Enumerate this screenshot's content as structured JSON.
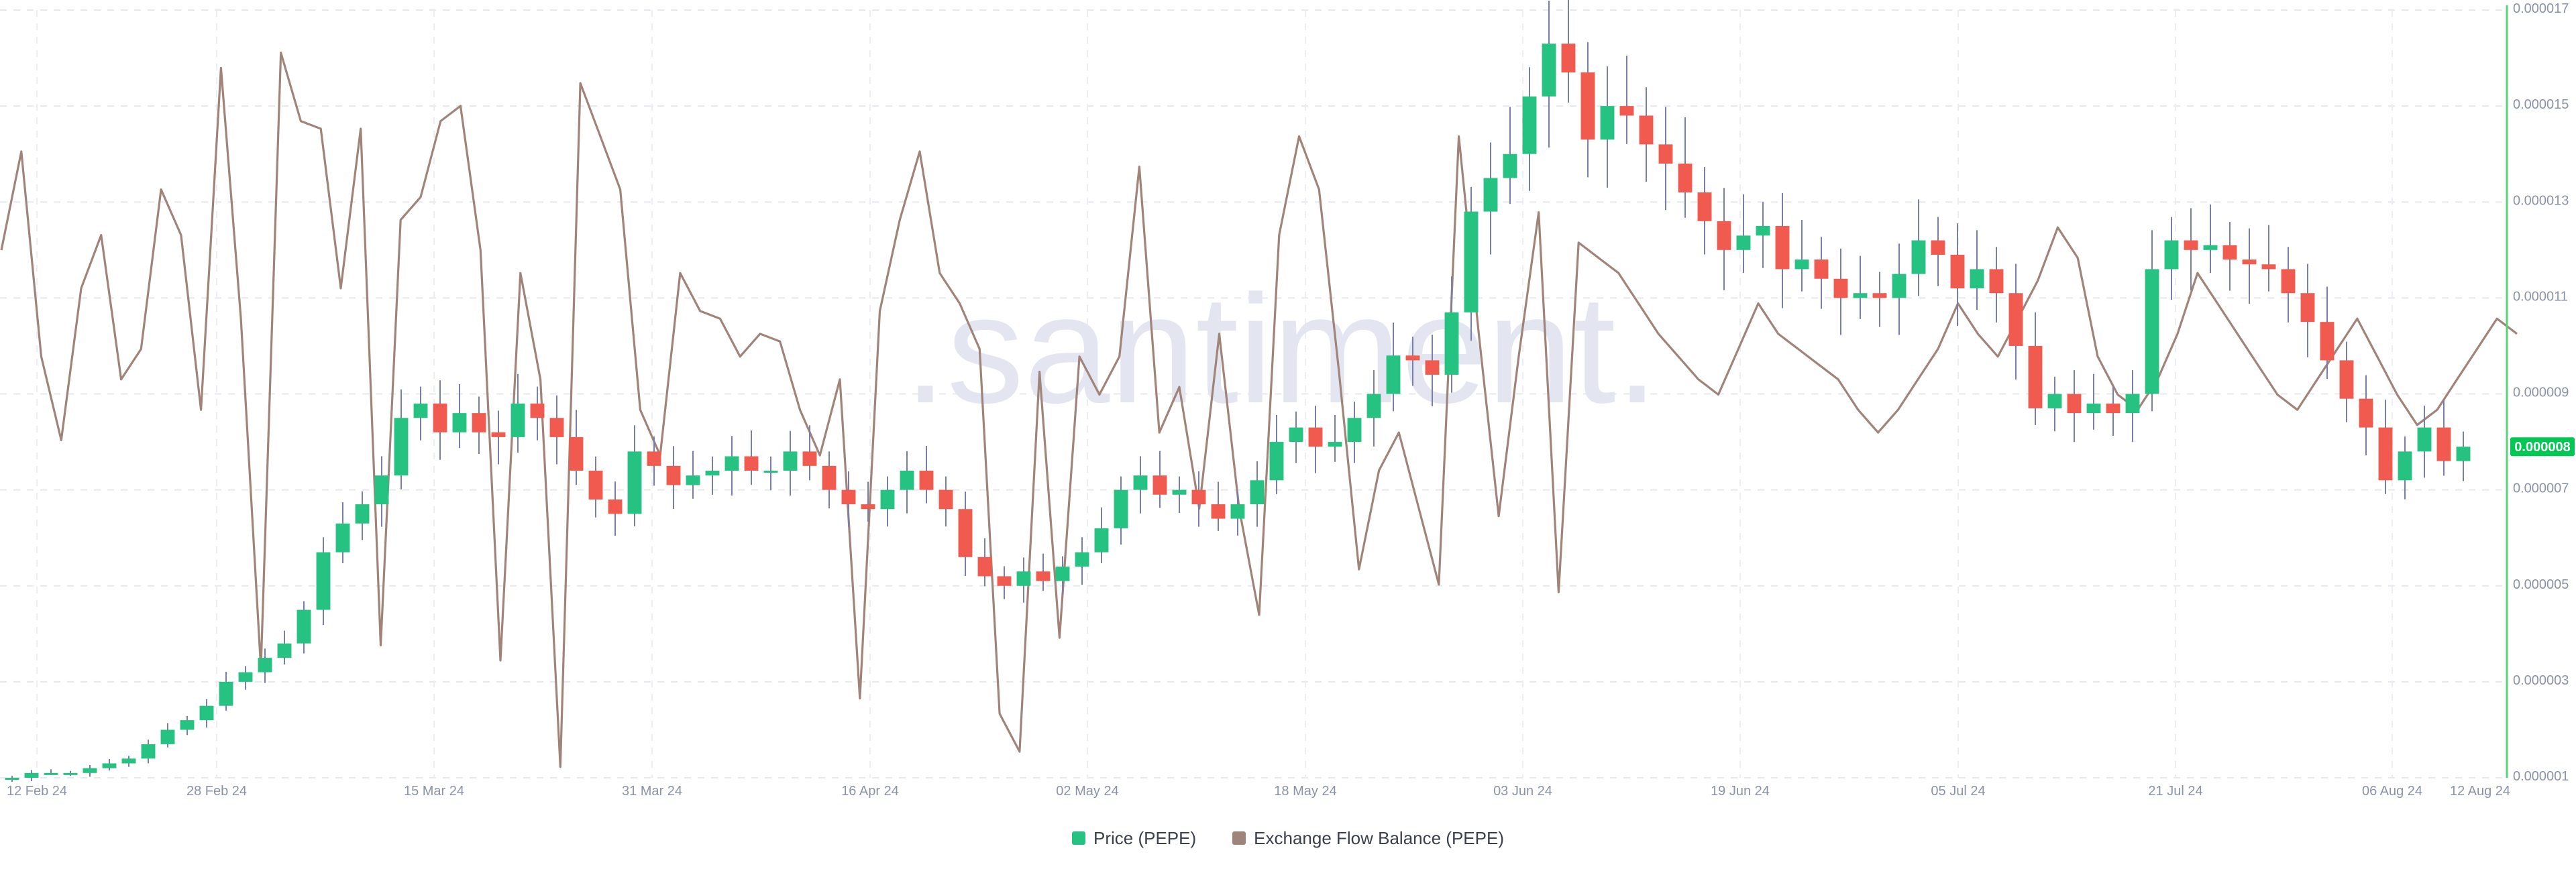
{
  "watermark": ".santiment.",
  "chart_data": {
    "type": "candlestick+line",
    "x_axis": {
      "ticks": [
        "12 Feb 24",
        "28 Feb 24",
        "15 Mar 24",
        "31 Mar 24",
        "16 Apr 24",
        "02 May 24",
        "18 May 24",
        "03 Jun 24",
        "19 Jun 24",
        "05 Jul 24",
        "21 Jul 24",
        "06 Aug 24",
        "12 Aug 24"
      ],
      "range": [
        "12 Feb 24",
        "12 Aug 24"
      ]
    },
    "y_axis_right": {
      "ticks": [
        "0.000001",
        "0.000003",
        "0.000005",
        "0.000007",
        "0.000009",
        "0.000011",
        "0.000013",
        "0.000015",
        "0.000017"
      ],
      "range": [
        1e-06,
        1.7e-05
      ]
    },
    "current_price_label": "0.000008",
    "grid": true,
    "legend_position": "bottom-center",
    "series": [
      {
        "name": "Price (PEPE)",
        "type": "candlestick",
        "colors": {
          "up": "#26c281",
          "down": "#f05a4f",
          "accent": "#00c853"
        },
        "close_values": [
          1e-06,
          1.1e-06,
          1.1e-06,
          1.1e-06,
          1.2e-06,
          1.3e-06,
          1.4e-06,
          1.7e-06,
          2e-06,
          2.2e-06,
          2.5e-06,
          3e-06,
          3.2e-06,
          3.5e-06,
          3.8e-06,
          4.5e-06,
          5.7e-06,
          6.3e-06,
          6.7e-06,
          7.3e-06,
          8.5e-06,
          8.8e-06,
          8.2e-06,
          8.6e-06,
          8.2e-06,
          8.1e-06,
          8.8e-06,
          8.5e-06,
          8.1e-06,
          7.4e-06,
          6.8e-06,
          6.5e-06,
          7.8e-06,
          7.5e-06,
          7.1e-06,
          7.3e-06,
          7.4e-06,
          7.7e-06,
          7.4e-06,
          7.4e-06,
          7.8e-06,
          7.5e-06,
          7e-06,
          6.7e-06,
          6.6e-06,
          7e-06,
          7.4e-06,
          7e-06,
          6.6e-06,
          5.6e-06,
          5.2e-06,
          5e-06,
          5.3e-06,
          5.1e-06,
          5.4e-06,
          5.7e-06,
          6.2e-06,
          7e-06,
          7.3e-06,
          6.9e-06,
          7e-06,
          6.7e-06,
          6.4e-06,
          6.7e-06,
          7.2e-06,
          8e-06,
          8.3e-06,
          7.9e-06,
          8e-06,
          8.5e-06,
          9e-06,
          9.8e-06,
          9.7e-06,
          9.4e-06,
          1.07e-05,
          1.28e-05,
          1.35e-05,
          1.4e-05,
          1.52e-05,
          1.63e-05,
          1.57e-05,
          1.43e-05,
          1.5e-05,
          1.48e-05,
          1.42e-05,
          1.38e-05,
          1.32e-05,
          1.26e-05,
          1.2e-05,
          1.23e-05,
          1.25e-05,
          1.16e-05,
          1.18e-05,
          1.14e-05,
          1.1e-05,
          1.11e-05,
          1.1e-05,
          1.15e-05,
          1.22e-05,
          1.19e-05,
          1.12e-05,
          1.16e-05,
          1.11e-05,
          1e-05,
          8.7e-06,
          9e-06,
          8.6e-06,
          8.8e-06,
          8.6e-06,
          9e-06,
          1.16e-05,
          1.22e-05,
          1.2e-05,
          1.21e-05,
          1.18e-05,
          1.17e-05,
          1.16e-05,
          1.11e-05,
          1.05e-05,
          9.7e-06,
          8.9e-06,
          8.3e-06,
          7.2e-06,
          7.8e-06,
          8.3e-06,
          7.6e-06,
          7.9e-06
        ],
        "approx_range": [
          1e-06,
          1.67e-05
        ]
      },
      {
        "name": "Exchange Flow Balance (PEPE)",
        "type": "line",
        "color": "#a0847a",
        "values_relative": [
          0.69,
          0.82,
          0.55,
          0.44,
          0.64,
          0.71,
          0.52,
          0.56,
          0.77,
          0.71,
          0.48,
          0.93,
          0.6,
          0.14,
          0.95,
          0.86,
          0.85,
          0.64,
          0.85,
          0.17,
          0.73,
          0.76,
          0.86,
          0.88,
          0.69,
          0.15,
          0.66,
          0.52,
          0.01,
          0.91,
          0.84,
          0.77,
          0.48,
          0.42,
          0.66,
          0.61,
          0.6,
          0.55,
          0.58,
          0.57,
          0.48,
          0.42,
          0.52,
          0.1,
          0.61,
          0.73,
          0.82,
          0.66,
          0.62,
          0.56,
          0.08,
          0.03,
          0.53,
          0.18,
          0.55,
          0.5,
          0.55,
          0.8,
          0.45,
          0.51,
          0.35,
          0.58,
          0.35,
          0.21,
          0.71,
          0.84,
          0.77,
          0.53,
          0.27,
          0.4,
          0.45,
          0.35,
          0.25,
          0.84,
          0.58,
          0.34,
          0.55,
          0.74,
          0.24,
          0.7,
          0.68,
          0.66,
          0.62,
          0.58,
          0.55,
          0.52,
          0.5,
          0.56,
          0.62,
          0.58,
          0.56,
          0.54,
          0.52,
          0.48,
          0.45,
          0.48,
          0.52,
          0.56,
          0.62,
          0.58,
          0.55,
          0.6,
          0.65,
          0.72,
          0.68,
          0.55,
          0.5,
          0.48,
          0.52,
          0.58,
          0.66,
          0.62,
          0.58,
          0.54,
          0.5,
          0.48,
          0.52,
          0.56,
          0.6,
          0.55,
          0.5,
          0.46,
          0.48,
          0.52,
          0.56,
          0.6,
          0.58
        ]
      }
    ],
    "legend": [
      {
        "label": "Price (PEPE)",
        "color": "#26c281"
      },
      {
        "label": "Exchange Flow Balance (PEPE)",
        "color": "#a0847a"
      }
    ]
  }
}
